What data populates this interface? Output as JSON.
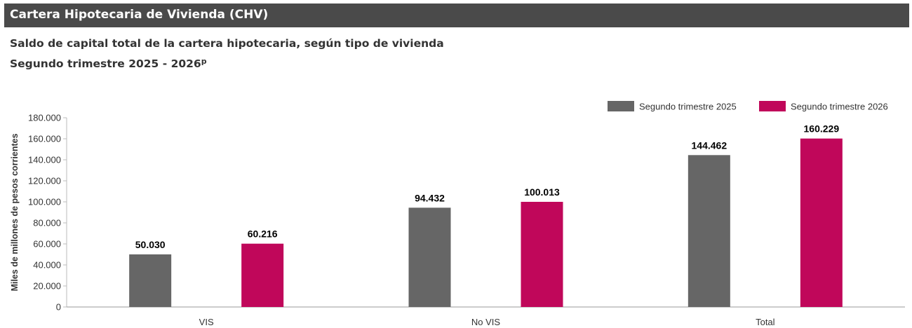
{
  "header": {
    "title": "Cartera Hipotecaria de Vivienda (CHV)",
    "subtitle_line1": "Saldo de capital total de la cartera hipotecaria, según tipo de vivienda",
    "subtitle_line2": "Segundo trimestre 2025 - 2026",
    "subtitle_superscript": "p"
  },
  "chart_data": {
    "type": "bar",
    "title": "",
    "xlabel": "",
    "ylabel": "Miles de millones de pesos corrientes",
    "categories": [
      "VIS",
      "No VIS",
      "Total"
    ],
    "series": [
      {
        "name": "Segundo trimestre 2025",
        "color": "#666666",
        "values": [
          50030,
          94432,
          144462
        ],
        "labels": [
          "50.030",
          "94.432",
          "144.462"
        ]
      },
      {
        "name": "Segundo trimestre 2026",
        "color": "#c0075a",
        "values": [
          60216,
          100013,
          160229
        ],
        "labels": [
          "60.216",
          "100.013",
          "160.229"
        ]
      }
    ],
    "ylim": [
      0,
      180000
    ],
    "yticks": [
      0,
      20000,
      40000,
      60000,
      80000,
      100000,
      120000,
      140000,
      160000,
      180000
    ],
    "ytick_labels": [
      "0",
      "20.000",
      "40.000",
      "60.000",
      "80.000",
      "100.000",
      "120.000",
      "140.000",
      "160.000",
      "180.000"
    ],
    "grid": false,
    "legend_position": "top-right"
  }
}
